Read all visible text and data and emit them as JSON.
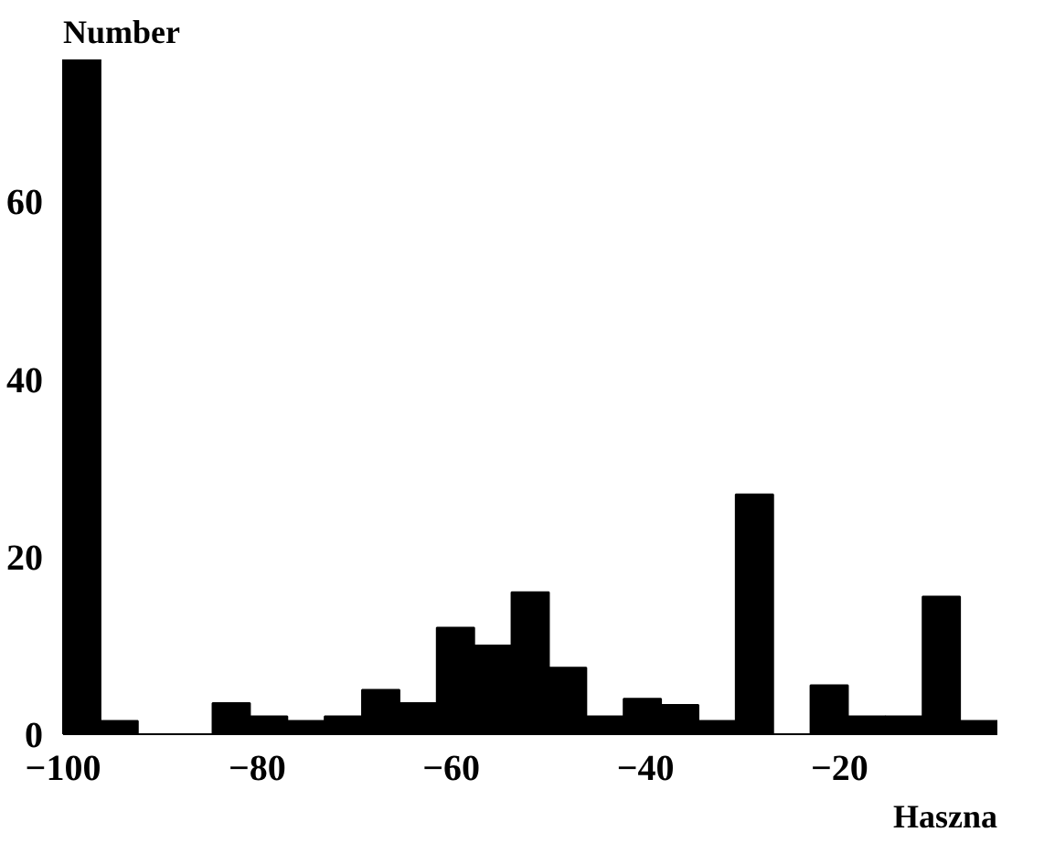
{
  "chart_data": {
    "type": "histogram",
    "xlabel": "Haszna",
    "ylabel": "Number",
    "bins": [
      -100,
      -96.15,
      -92.3,
      -88.45,
      -84.6,
      -80.75,
      -76.9,
      -73.05,
      -69.2,
      -65.35,
      -61.5,
      -57.65,
      -53.8,
      -49.95,
      -46.1,
      -42.25,
      -38.4,
      -34.55,
      -30.7,
      -26.85,
      -23,
      -19.15,
      -15.3,
      -11.45,
      -7.6,
      -3.75
    ],
    "values": [
      76,
      1.5,
      0,
      0,
      3.5,
      2,
      1.5,
      2,
      5,
      3.5,
      12,
      10,
      16,
      7.5,
      2,
      4,
      3.3,
      1.5,
      27,
      0,
      5.5,
      2,
      2,
      15.5,
      1.5
    ],
    "color": "#000000",
    "xlim": [
      -100,
      -3.75
    ],
    "ylim": [
      0,
      76
    ],
    "xticks": [
      -100,
      -80,
      -60,
      -40,
      -20
    ],
    "yticks": [
      0,
      20,
      40,
      60
    ],
    "grid": false
  }
}
